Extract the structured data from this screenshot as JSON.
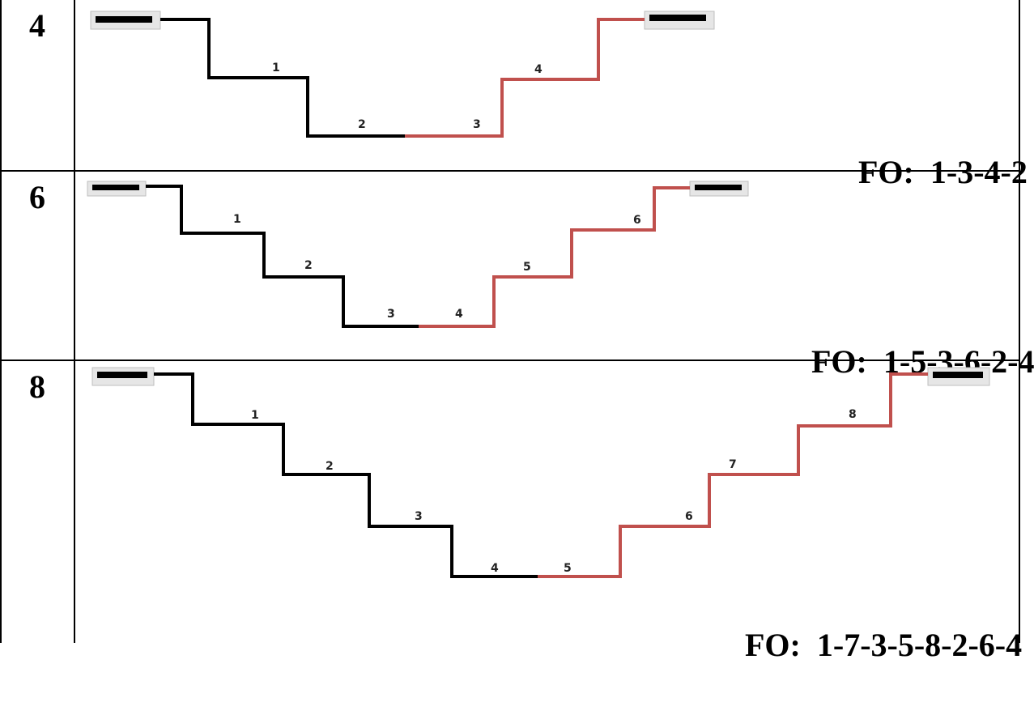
{
  "rows": [
    {
      "count": "4",
      "fo_label": "FO:",
      "fo_value": "1-3-4-2",
      "step_labels": [
        "1",
        "2",
        "3",
        "4"
      ],
      "black_steps": 2,
      "red_steps": 2
    },
    {
      "count": "6",
      "fo_label": "FO:",
      "fo_value": "1-5-3-6-2-4",
      "step_labels": [
        "1",
        "2",
        "3",
        "4",
        "5",
        "6"
      ],
      "black_steps": 3,
      "red_steps": 3
    },
    {
      "count": "8",
      "fo_label": "FO:",
      "fo_value": "1-7-3-5-8-2-6-4",
      "step_labels": [
        "1",
        "2",
        "3",
        "4",
        "5",
        "6",
        "7",
        "8"
      ],
      "black_steps": 4,
      "red_steps": 4
    }
  ],
  "colors": {
    "descending_path": "#000000",
    "ascending_path": "#c0504d",
    "grid": "#000000",
    "endpoint_bar": "#000000",
    "endpoint_shadow": "#d9d9d9"
  }
}
